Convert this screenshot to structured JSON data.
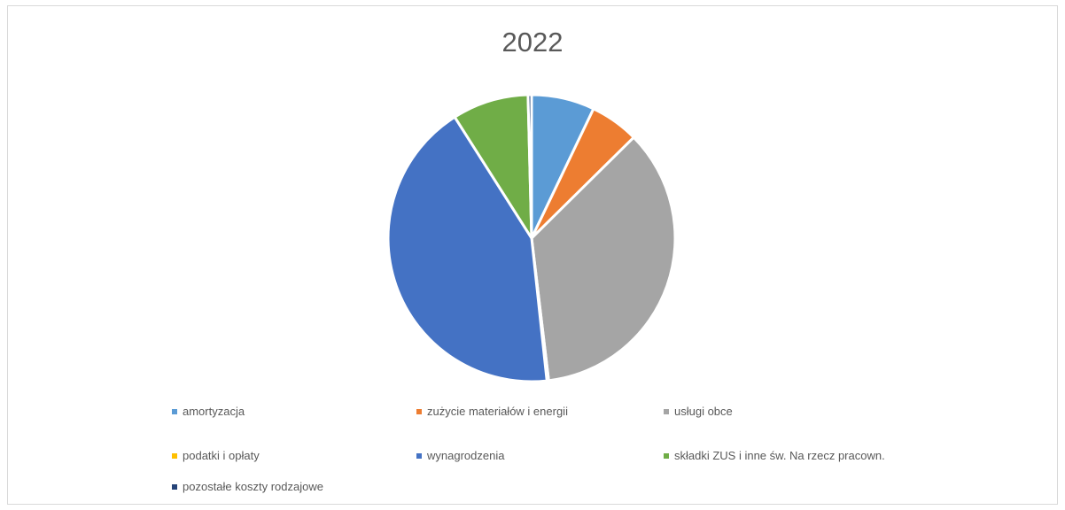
{
  "chart_data": {
    "type": "pie",
    "title": "2022",
    "legend_position": "bottom",
    "categories": [
      "amortyzacja",
      "zużycie materiałów i energii",
      "usługi obce",
      "podatki i opłaty",
      "wynagrodzenia",
      "składki ZUS i inne św. Na rzecz pracown.",
      "pozostałe koszty rodzajowe"
    ],
    "values": [
      7.1,
      5.5,
      35.5,
      0.2,
      42.7,
      8.6,
      0.4
    ],
    "colors": [
      "#5b9bd5",
      "#ed7d31",
      "#a5a5a5",
      "#ffc000",
      "#4472c4",
      "#70ad47",
      "#264478"
    ]
  }
}
